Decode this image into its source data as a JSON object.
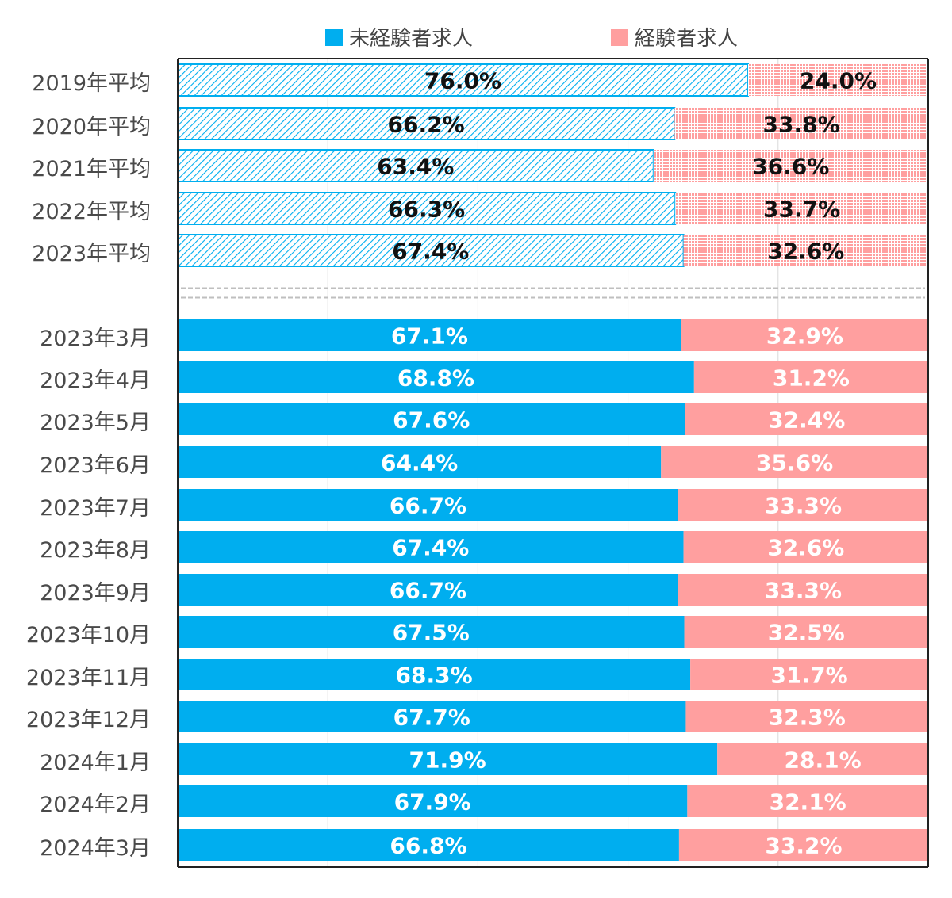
{
  "legend": {
    "series_a": "未経験者求人",
    "series_b": "経験者求人"
  },
  "colors": {
    "inexperienced": "#00aeef",
    "experienced": "#ff9f9f",
    "label_light": "#ffffff",
    "label_dark": "#111111"
  },
  "chart_data": {
    "type": "bar",
    "orientation": "horizontal",
    "stacked": "percent",
    "xlim": [
      0,
      100
    ],
    "grid": true,
    "legend_position": "top",
    "categories": [
      "2019年平均",
      "2020年平均",
      "2021年平均",
      "2022年平均",
      "2023年平均",
      "2023年3月",
      "2023年4月",
      "2023年5月",
      "2023年6月",
      "2023年7月",
      "2023年8月",
      "2023年9月",
      "2023年10月",
      "2023年11月",
      "2023年12月",
      "2024年1月",
      "2024年2月",
      "2024年3月"
    ],
    "series": [
      {
        "name": "未経験者求人",
        "values": [
          76.0,
          66.2,
          63.4,
          66.3,
          67.4,
          67.1,
          68.8,
          67.6,
          64.4,
          66.7,
          67.4,
          66.7,
          67.5,
          68.3,
          67.7,
          71.9,
          67.9,
          66.8
        ],
        "labels": [
          "76.0%",
          "66.2%",
          "63.4%",
          "66.3%",
          "67.4%",
          "67.1%",
          "68.8%",
          "67.6%",
          "64.4%",
          "66.7%",
          "67.4%",
          "66.7%",
          "67.5%",
          "68.3%",
          "67.7%",
          "71.9%",
          "67.9%",
          "66.8%"
        ]
      },
      {
        "name": "経験者求人",
        "values": [
          24.0,
          33.8,
          36.6,
          33.7,
          32.6,
          32.9,
          31.2,
          32.4,
          35.6,
          33.3,
          32.6,
          33.3,
          32.5,
          31.7,
          32.3,
          28.1,
          32.1,
          33.2
        ],
        "labels": [
          "24.0%",
          "33.8%",
          "36.6%",
          "33.7%",
          "32.6%",
          "32.9%",
          "31.2%",
          "32.4%",
          "35.6%",
          "33.3%",
          "32.6%",
          "33.3%",
          "32.5%",
          "31.7%",
          "32.3%",
          "28.1%",
          "32.1%",
          "33.2%"
        ]
      }
    ],
    "patterned_rows": 5,
    "section_divider_after_row": 5
  }
}
